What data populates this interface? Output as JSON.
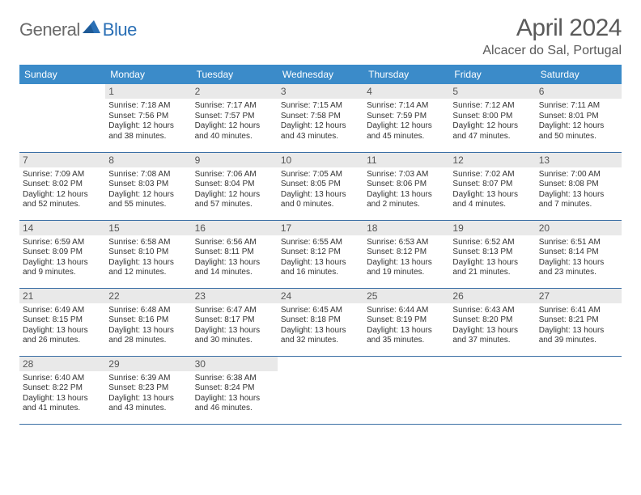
{
  "logo": {
    "part1": "General",
    "part2": "Blue"
  },
  "title": "April 2024",
  "subtitle": "Alcacer do Sal, Portugal",
  "colors": {
    "header_bg": "#3b8bc9",
    "header_text": "#ffffff",
    "row_border": "#3b6fa5",
    "daynum_bg": "#e9e9e9",
    "logo_gray": "#6a6a6a",
    "logo_blue": "#2a6fb5"
  },
  "weekdays": [
    "Sunday",
    "Monday",
    "Tuesday",
    "Wednesday",
    "Thursday",
    "Friday",
    "Saturday"
  ],
  "weeks": [
    [
      {
        "empty": true
      },
      {
        "day": "1",
        "sunrise": "Sunrise: 7:18 AM",
        "sunset": "Sunset: 7:56 PM",
        "dl1": "Daylight: 12 hours",
        "dl2": "and 38 minutes."
      },
      {
        "day": "2",
        "sunrise": "Sunrise: 7:17 AM",
        "sunset": "Sunset: 7:57 PM",
        "dl1": "Daylight: 12 hours",
        "dl2": "and 40 minutes."
      },
      {
        "day": "3",
        "sunrise": "Sunrise: 7:15 AM",
        "sunset": "Sunset: 7:58 PM",
        "dl1": "Daylight: 12 hours",
        "dl2": "and 43 minutes."
      },
      {
        "day": "4",
        "sunrise": "Sunrise: 7:14 AM",
        "sunset": "Sunset: 7:59 PM",
        "dl1": "Daylight: 12 hours",
        "dl2": "and 45 minutes."
      },
      {
        "day": "5",
        "sunrise": "Sunrise: 7:12 AM",
        "sunset": "Sunset: 8:00 PM",
        "dl1": "Daylight: 12 hours",
        "dl2": "and 47 minutes."
      },
      {
        "day": "6",
        "sunrise": "Sunrise: 7:11 AM",
        "sunset": "Sunset: 8:01 PM",
        "dl1": "Daylight: 12 hours",
        "dl2": "and 50 minutes."
      }
    ],
    [
      {
        "day": "7",
        "sunrise": "Sunrise: 7:09 AM",
        "sunset": "Sunset: 8:02 PM",
        "dl1": "Daylight: 12 hours",
        "dl2": "and 52 minutes."
      },
      {
        "day": "8",
        "sunrise": "Sunrise: 7:08 AM",
        "sunset": "Sunset: 8:03 PM",
        "dl1": "Daylight: 12 hours",
        "dl2": "and 55 minutes."
      },
      {
        "day": "9",
        "sunrise": "Sunrise: 7:06 AM",
        "sunset": "Sunset: 8:04 PM",
        "dl1": "Daylight: 12 hours",
        "dl2": "and 57 minutes."
      },
      {
        "day": "10",
        "sunrise": "Sunrise: 7:05 AM",
        "sunset": "Sunset: 8:05 PM",
        "dl1": "Daylight: 13 hours",
        "dl2": "and 0 minutes."
      },
      {
        "day": "11",
        "sunrise": "Sunrise: 7:03 AM",
        "sunset": "Sunset: 8:06 PM",
        "dl1": "Daylight: 13 hours",
        "dl2": "and 2 minutes."
      },
      {
        "day": "12",
        "sunrise": "Sunrise: 7:02 AM",
        "sunset": "Sunset: 8:07 PM",
        "dl1": "Daylight: 13 hours",
        "dl2": "and 4 minutes."
      },
      {
        "day": "13",
        "sunrise": "Sunrise: 7:00 AM",
        "sunset": "Sunset: 8:08 PM",
        "dl1": "Daylight: 13 hours",
        "dl2": "and 7 minutes."
      }
    ],
    [
      {
        "day": "14",
        "sunrise": "Sunrise: 6:59 AM",
        "sunset": "Sunset: 8:09 PM",
        "dl1": "Daylight: 13 hours",
        "dl2": "and 9 minutes."
      },
      {
        "day": "15",
        "sunrise": "Sunrise: 6:58 AM",
        "sunset": "Sunset: 8:10 PM",
        "dl1": "Daylight: 13 hours",
        "dl2": "and 12 minutes."
      },
      {
        "day": "16",
        "sunrise": "Sunrise: 6:56 AM",
        "sunset": "Sunset: 8:11 PM",
        "dl1": "Daylight: 13 hours",
        "dl2": "and 14 minutes."
      },
      {
        "day": "17",
        "sunrise": "Sunrise: 6:55 AM",
        "sunset": "Sunset: 8:12 PM",
        "dl1": "Daylight: 13 hours",
        "dl2": "and 16 minutes."
      },
      {
        "day": "18",
        "sunrise": "Sunrise: 6:53 AM",
        "sunset": "Sunset: 8:12 PM",
        "dl1": "Daylight: 13 hours",
        "dl2": "and 19 minutes."
      },
      {
        "day": "19",
        "sunrise": "Sunrise: 6:52 AM",
        "sunset": "Sunset: 8:13 PM",
        "dl1": "Daylight: 13 hours",
        "dl2": "and 21 minutes."
      },
      {
        "day": "20",
        "sunrise": "Sunrise: 6:51 AM",
        "sunset": "Sunset: 8:14 PM",
        "dl1": "Daylight: 13 hours",
        "dl2": "and 23 minutes."
      }
    ],
    [
      {
        "day": "21",
        "sunrise": "Sunrise: 6:49 AM",
        "sunset": "Sunset: 8:15 PM",
        "dl1": "Daylight: 13 hours",
        "dl2": "and 26 minutes."
      },
      {
        "day": "22",
        "sunrise": "Sunrise: 6:48 AM",
        "sunset": "Sunset: 8:16 PM",
        "dl1": "Daylight: 13 hours",
        "dl2": "and 28 minutes."
      },
      {
        "day": "23",
        "sunrise": "Sunrise: 6:47 AM",
        "sunset": "Sunset: 8:17 PM",
        "dl1": "Daylight: 13 hours",
        "dl2": "and 30 minutes."
      },
      {
        "day": "24",
        "sunrise": "Sunrise: 6:45 AM",
        "sunset": "Sunset: 8:18 PM",
        "dl1": "Daylight: 13 hours",
        "dl2": "and 32 minutes."
      },
      {
        "day": "25",
        "sunrise": "Sunrise: 6:44 AM",
        "sunset": "Sunset: 8:19 PM",
        "dl1": "Daylight: 13 hours",
        "dl2": "and 35 minutes."
      },
      {
        "day": "26",
        "sunrise": "Sunrise: 6:43 AM",
        "sunset": "Sunset: 8:20 PM",
        "dl1": "Daylight: 13 hours",
        "dl2": "and 37 minutes."
      },
      {
        "day": "27",
        "sunrise": "Sunrise: 6:41 AM",
        "sunset": "Sunset: 8:21 PM",
        "dl1": "Daylight: 13 hours",
        "dl2": "and 39 minutes."
      }
    ],
    [
      {
        "day": "28",
        "sunrise": "Sunrise: 6:40 AM",
        "sunset": "Sunset: 8:22 PM",
        "dl1": "Daylight: 13 hours",
        "dl2": "and 41 minutes."
      },
      {
        "day": "29",
        "sunrise": "Sunrise: 6:39 AM",
        "sunset": "Sunset: 8:23 PM",
        "dl1": "Daylight: 13 hours",
        "dl2": "and 43 minutes."
      },
      {
        "day": "30",
        "sunrise": "Sunrise: 6:38 AM",
        "sunset": "Sunset: 8:24 PM",
        "dl1": "Daylight: 13 hours",
        "dl2": "and 46 minutes."
      },
      {
        "empty": true
      },
      {
        "empty": true
      },
      {
        "empty": true
      },
      {
        "empty": true
      }
    ]
  ]
}
